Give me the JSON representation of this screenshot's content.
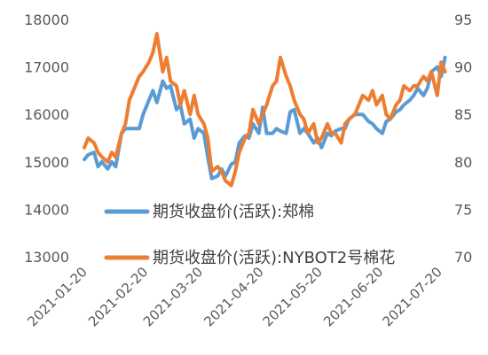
{
  "chart_data": {
    "type": "line",
    "title": "",
    "xlabel": "",
    "ylabel_left": "",
    "ylabel_right": "",
    "x_ticks": [
      "2021-01-20",
      "2021-02-20",
      "2021-03-20",
      "2021-04-20",
      "2021-05-20",
      "2021-06-20",
      "2021-07-20"
    ],
    "y_left_ticks": [
      "13000",
      "14000",
      "15000",
      "16000",
      "17000",
      "18000"
    ],
    "y_right_ticks": [
      "70",
      "75",
      "80",
      "85",
      "90",
      "95"
    ],
    "y_left_range": [
      13000,
      18000
    ],
    "y_right_range": [
      70,
      95
    ],
    "grid": false,
    "legend": "inside-center-left",
    "x": [
      "2021-01-20",
      "2021-01-22",
      "2021-01-25",
      "2021-01-27",
      "2021-01-29",
      "2021-02-01",
      "2021-02-03",
      "2021-02-05",
      "2021-02-08",
      "2021-02-10",
      "2021-02-12",
      "2021-02-15",
      "2021-02-17",
      "2021-02-19",
      "2021-02-22",
      "2021-02-24",
      "2021-02-26",
      "2021-03-01",
      "2021-03-03",
      "2021-03-05",
      "2021-03-08",
      "2021-03-10",
      "2021-03-12",
      "2021-03-15",
      "2021-03-17",
      "2021-03-19",
      "2021-03-22",
      "2021-03-24",
      "2021-03-26",
      "2021-03-29",
      "2021-03-31",
      "2021-04-02",
      "2021-04-05",
      "2021-04-07",
      "2021-04-09",
      "2021-04-12",
      "2021-04-14",
      "2021-04-16",
      "2021-04-19",
      "2021-04-21",
      "2021-04-23",
      "2021-04-26",
      "2021-04-28",
      "2021-04-30",
      "2021-05-03",
      "2021-05-05",
      "2021-05-07",
      "2021-05-10",
      "2021-05-12",
      "2021-05-14",
      "2021-05-17",
      "2021-05-19",
      "2021-05-21",
      "2021-05-24",
      "2021-05-26",
      "2021-05-28",
      "2021-05-31",
      "2021-06-02",
      "2021-06-04",
      "2021-06-07",
      "2021-06-09",
      "2021-06-11",
      "2021-06-14",
      "2021-06-16",
      "2021-06-18",
      "2021-06-21",
      "2021-06-23",
      "2021-06-25",
      "2021-06-28",
      "2021-06-30",
      "2021-07-02",
      "2021-07-05",
      "2021-07-07",
      "2021-07-09",
      "2021-07-12",
      "2021-07-14",
      "2021-07-16",
      "2021-07-19",
      "2021-07-21",
      "2021-07-23"
    ],
    "series": [
      {
        "name": "期货收盘价(活跃):郑棉",
        "axis": "left",
        "color": "#5B9BD5",
        "values": [
          15050,
          15150,
          15200,
          14900,
          15000,
          14850,
          15000,
          14900,
          15600,
          15700,
          15700,
          15700,
          15700,
          16000,
          16300,
          16500,
          16250,
          16700,
          16550,
          16600,
          16100,
          16200,
          15800,
          15900,
          15500,
          15700,
          15600,
          15100,
          14650,
          14700,
          14850,
          14700,
          14950,
          15000,
          15400,
          15550,
          15500,
          15800,
          15600,
          16150,
          15600,
          15600,
          15700,
          15650,
          15600,
          16050,
          16100,
          15600,
          15700,
          15600,
          15400,
          15500,
          15300,
          15600,
          15550,
          15650,
          15700,
          15700,
          15900,
          16000,
          16000,
          16000,
          15850,
          15800,
          15700,
          15600,
          15850,
          15900,
          16050,
          16100,
          16200,
          16300,
          16400,
          16550,
          16400,
          16550,
          16900,
          17000,
          16800,
          17200
        ]
      },
      {
        "name": "期货收盘价(活跃):NYBOT2号棉花",
        "axis": "right",
        "color": "#ED7D31",
        "values": [
          81.5,
          82.5,
          82,
          81,
          80.5,
          80,
          81,
          80.5,
          83,
          84,
          86.5,
          88,
          89,
          89.5,
          90.5,
          91.5,
          93.5,
          89.5,
          91,
          88.5,
          88,
          86,
          87.5,
          85,
          87,
          85,
          84,
          82.5,
          79,
          79.5,
          79,
          78,
          77.5,
          79,
          81,
          82.5,
          83,
          85.5,
          84,
          85,
          86,
          88,
          88.5,
          91,
          89,
          88,
          86.5,
          85,
          84.5,
          83,
          84,
          82,
          82.5,
          84,
          83,
          83,
          82,
          84,
          84.5,
          85,
          86,
          87,
          86.5,
          87.5,
          86,
          87,
          85,
          84.5,
          86,
          86.5,
          88,
          87.5,
          88,
          88,
          89,
          88.5,
          89.5,
          87,
          90.5,
          89.5
        ]
      }
    ]
  }
}
